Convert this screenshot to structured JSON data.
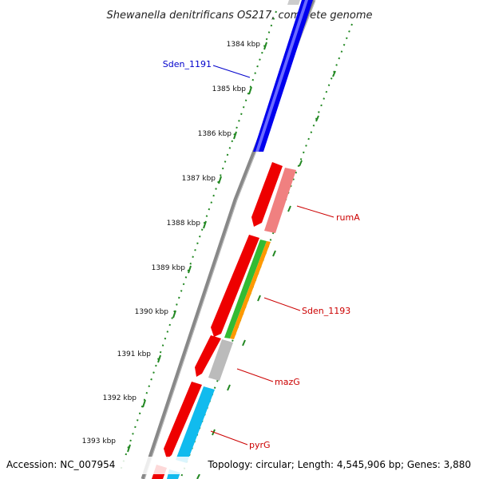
{
  "title": "Shewanella denitrificans OS217, complete genome",
  "footer": {
    "accession": "Accession: NC_007954",
    "topology": "Topology: circular; Length: 4,545,906 bp; Genes: 3,880"
  },
  "ticks": [
    "1384 kbp",
    "1385 kbp",
    "1386 kbp",
    "1387 kbp",
    "1388 kbp",
    "1389 kbp",
    "1390 kbp",
    "1391 kbp",
    "1392 kbp",
    "1393 kbp"
  ],
  "gene_labels": [
    "Sden_1191",
    "rumA",
    "Sden_1193",
    "mazG",
    "pyrG"
  ],
  "colors": {
    "blue_gene": "#0000ee",
    "red_gene": "#ee0000",
    "pink_gene": "#f08080",
    "green_gene": "#33bb33",
    "orange_gene": "#ff9900",
    "gray_gene": "#bbbbbb",
    "cyan_gene": "#11bbee",
    "tick_green": "#228822",
    "label_red": "#cc0000",
    "label_blue": "#0000cc"
  }
}
